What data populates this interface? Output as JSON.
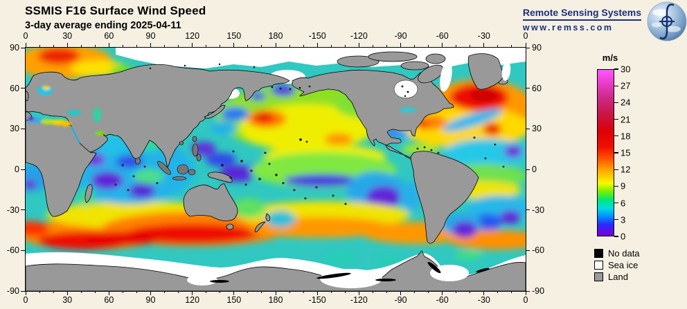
{
  "header": {
    "title": "SSMIS F16 Surface Wind Speed",
    "subtitle": "3-day average ending 2025-04-11"
  },
  "logo": {
    "name": "Remote Sensing Systems",
    "url": "www.remss.com"
  },
  "map": {
    "projection": "equirectangular",
    "lon_range_deg": [
      0,
      360
    ],
    "lat_range_deg": [
      -90,
      90
    ],
    "lon_tick_labels": [
      0,
      30,
      60,
      90,
      120,
      150,
      180,
      -150,
      -120,
      -90,
      -60,
      -30,
      0
    ],
    "lat_tick_labels": [
      90,
      60,
      30,
      0,
      -30,
      -60,
      -90
    ],
    "minor_tick_step_deg": 10
  },
  "colorbar": {
    "unit": "m/s",
    "min": 0,
    "max": 30,
    "tick_values": [
      30,
      27,
      24,
      21,
      18,
      15,
      12,
      9,
      6,
      3,
      0
    ],
    "gradient_stops": [
      {
        "value": 0,
        "color": "#7a00d0"
      },
      {
        "value": 2,
        "color": "#2a28ff"
      },
      {
        "value": 3.5,
        "color": "#0090ff"
      },
      {
        "value": 5,
        "color": "#00dce0"
      },
      {
        "value": 6.5,
        "color": "#00e878"
      },
      {
        "value": 8,
        "color": "#78f000"
      },
      {
        "value": 9.5,
        "color": "#f8f800"
      },
      {
        "value": 12,
        "color": "#ffa000"
      },
      {
        "value": 14,
        "color": "#ff5000"
      },
      {
        "value": 16,
        "color": "#f01000"
      },
      {
        "value": 19,
        "color": "#dc0008"
      },
      {
        "value": 22,
        "color": "#c81648"
      },
      {
        "value": 25,
        "color": "#cc2a8a"
      },
      {
        "value": 27.5,
        "color": "#e83cc8"
      },
      {
        "value": 30,
        "color": "#ff58ff"
      }
    ]
  },
  "legend": {
    "items": [
      {
        "label": "No data",
        "color": "#000000"
      },
      {
        "label": "Sea ice",
        "color": "#ffffff"
      },
      {
        "label": "Land",
        "color": "#999999"
      }
    ]
  },
  "colors": {
    "background": "#f5f0e2",
    "land": "#999999",
    "sea_ice": "#ffffff",
    "no_data": "#000000",
    "logo_navy": "#1b2f7e"
  }
}
